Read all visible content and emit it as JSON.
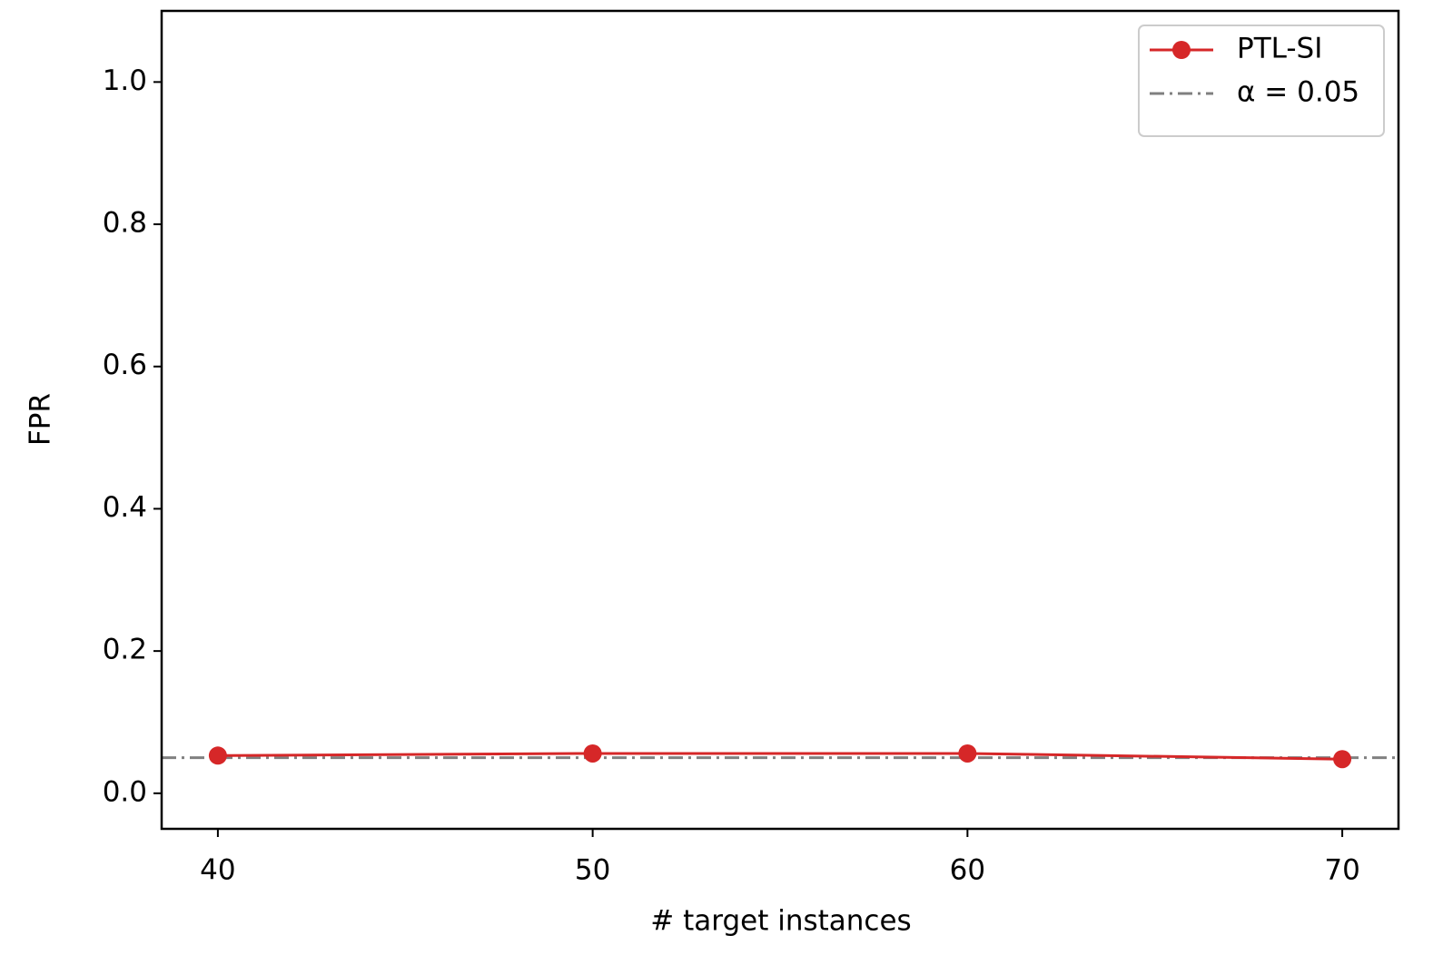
{
  "chart_data": {
    "type": "line",
    "x_label": "# target instances",
    "y_label": "FPR",
    "x": [
      40,
      50,
      60,
      70
    ],
    "series": [
      {
        "name": "PTL-SI",
        "color": "#d62728",
        "values": [
          0.053,
          0.056,
          0.056,
          0.048
        ]
      }
    ],
    "hlines": [
      {
        "name": "α = 0.05",
        "value": 0.05,
        "color": "#808080"
      }
    ],
    "xlim": [
      38.5,
      71.5
    ],
    "ylim": [
      -0.05,
      1.1
    ],
    "xticks": [
      40,
      50,
      60,
      70
    ],
    "yticks": [
      {
        "value": 0,
        "label": "0.0"
      },
      {
        "value": 0.2,
        "label": "0.2"
      },
      {
        "value": 0.4,
        "label": "0.4"
      },
      {
        "value": 0.6,
        "label": "0.6"
      },
      {
        "value": 0.8,
        "label": "0.8"
      },
      {
        "value": 1,
        "label": "1.0"
      }
    ],
    "legend": "upper right",
    "grid": false
  }
}
